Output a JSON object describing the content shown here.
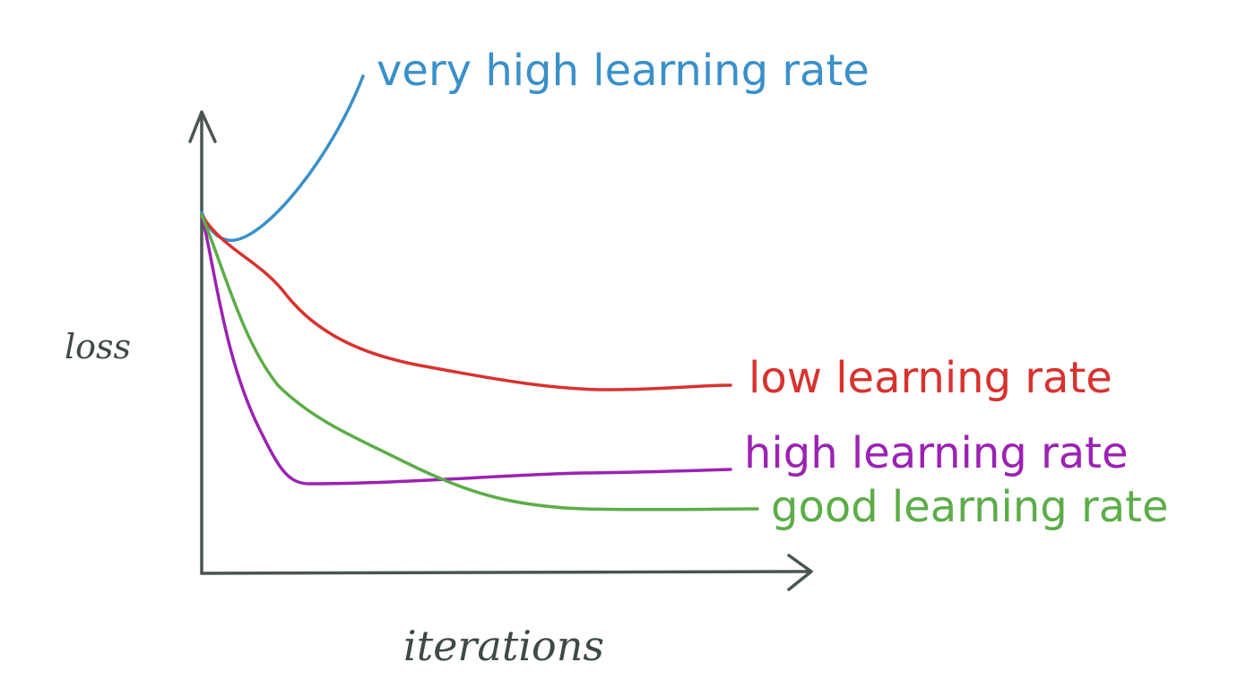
{
  "axes": {
    "y_label": "loss",
    "x_label": "iterations"
  },
  "curves": [
    {
      "label": "very high learning rate",
      "color": "#3a90c9"
    },
    {
      "label": "low learning rate",
      "color": "#d8322e"
    },
    {
      "label": "high learning rate",
      "color": "#9b22b3"
    },
    {
      "label": "good learning rate",
      "color": "#5cad48"
    }
  ]
}
